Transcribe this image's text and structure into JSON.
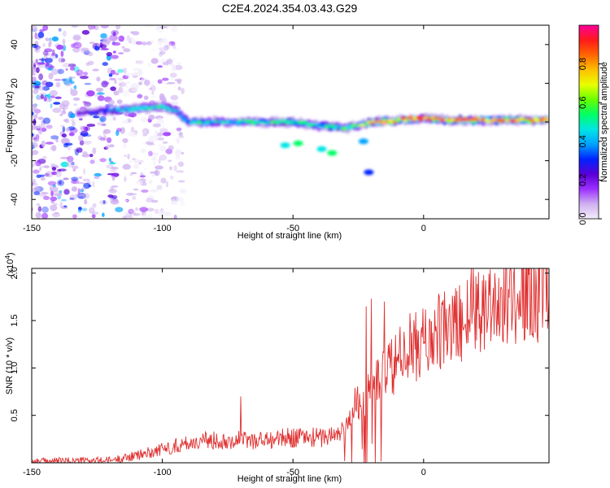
{
  "title": "C2E4.2024.354.03.43.G29",
  "spectrogram": {
    "xlabel": "Height of straight line (km)",
    "ylabel": "Frequency (Hz)",
    "xlim": [
      -150,
      48
    ],
    "ylim": [
      -50,
      50
    ],
    "xticks": [
      "-150",
      "-100",
      "-50",
      "0"
    ],
    "xtick_values": [
      -150,
      -100,
      -50,
      0
    ],
    "yticks": [
      "-40",
      "-20",
      "0",
      "20",
      "40"
    ],
    "ytick_values": [
      -40,
      -20,
      0,
      20,
      40
    ],
    "colorbar": {
      "label": "Normalized spectral amplitude",
      "ticks": [
        "0.0",
        "0.2",
        "0.4",
        "0.6",
        "0.8"
      ],
      "tick_values": [
        0.0,
        0.2,
        0.4,
        0.6,
        0.8
      ],
      "range": [
        0,
        1
      ],
      "colors": [
        "#f3eefb",
        "#cfb0f0",
        "#9b30ff",
        "#5a00d6",
        "#0022ff",
        "#00a2ff",
        "#00e5e5",
        "#00ff66",
        "#66ff00",
        "#e8ff00",
        "#ffbf00",
        "#ff6600",
        "#ff1a1a",
        "#ff0099"
      ]
    }
  },
  "snr": {
    "xlabel": "Height of straight line (km)",
    "ylabel": "SNR (10 * v/v)",
    "multiplier": "(x10",
    "multiplier_exp": "4",
    "multiplier_close": ")",
    "xlim": [
      -150,
      48
    ],
    "ylim": [
      0,
      2.05
    ],
    "xticks": [
      "-150",
      "-100",
      "-50",
      "0"
    ],
    "xtick_values": [
      -150,
      -100,
      -50,
      0
    ],
    "yticks": [
      "0.5",
      "1.0",
      "1.5",
      "2.0"
    ],
    "ytick_values": [
      0.5,
      1.0,
      1.5,
      2.0
    ],
    "line_color": "#e03030"
  },
  "chart_data": [
    {
      "type": "heatmap",
      "title": "C2E4.2024.354.03.43.G29",
      "xlabel": "Height of straight line (km)",
      "ylabel": "Frequency (Hz)",
      "xlim": [
        -150,
        48
      ],
      "ylim": [
        -50,
        50
      ],
      "value_range": [
        0,
        1
      ],
      "ridge": {
        "x": [
          -130,
          -120,
          -110,
          -100,
          -95,
          -90,
          -80,
          -70,
          -60,
          -50,
          -40,
          -30,
          -25,
          -20,
          -10,
          0,
          10,
          20,
          30,
          40,
          48
        ],
        "frequency": [
          5,
          6,
          7,
          8,
          6,
          0,
          0,
          0,
          0,
          0,
          -2,
          -3,
          -2,
          0,
          1,
          2,
          1,
          1,
          1,
          1,
          1
        ],
        "amplitude": [
          0.25,
          0.4,
          0.5,
          0.5,
          0.45,
          0.45,
          0.5,
          0.5,
          0.55,
          0.55,
          0.5,
          0.55,
          0.6,
          0.8,
          0.85,
          0.9,
          0.9,
          0.95,
          0.9,
          0.85,
          0.8
        ]
      },
      "noise_region_x": [
        -150,
        -115
      ]
    },
    {
      "type": "line",
      "xlabel": "Height of straight line (km)",
      "ylabel": "SNR (10 * v/v)",
      "xlim": [
        -150,
        48
      ],
      "ylim": [
        0,
        2.05
      ],
      "y_multiplier": 10000,
      "envelope": {
        "x": [
          -150,
          -120,
          -110,
          -100,
          -90,
          -80,
          -70,
          -60,
          -50,
          -40,
          -35,
          -30,
          -28,
          -25,
          -22,
          -20,
          -15,
          -10,
          -5,
          0,
          5,
          10,
          15,
          20,
          25,
          30,
          35,
          40,
          45,
          48
        ],
        "y": [
          0.02,
          0.03,
          0.08,
          0.15,
          0.22,
          0.25,
          0.25,
          0.25,
          0.28,
          0.28,
          0.3,
          0.35,
          0.6,
          0.65,
          0.75,
          0.8,
          0.95,
          1.1,
          1.25,
          1.3,
          1.4,
          1.45,
          1.55,
          1.7,
          1.75,
          1.75,
          1.8,
          1.85,
          1.85,
          1.85
        ]
      },
      "peaks": {
        "x": [
          -70,
          -22,
          -20,
          -15,
          19
        ],
        "y": [
          0.7,
          1.65,
          1.73,
          1.7,
          2.08
        ]
      }
    }
  ]
}
